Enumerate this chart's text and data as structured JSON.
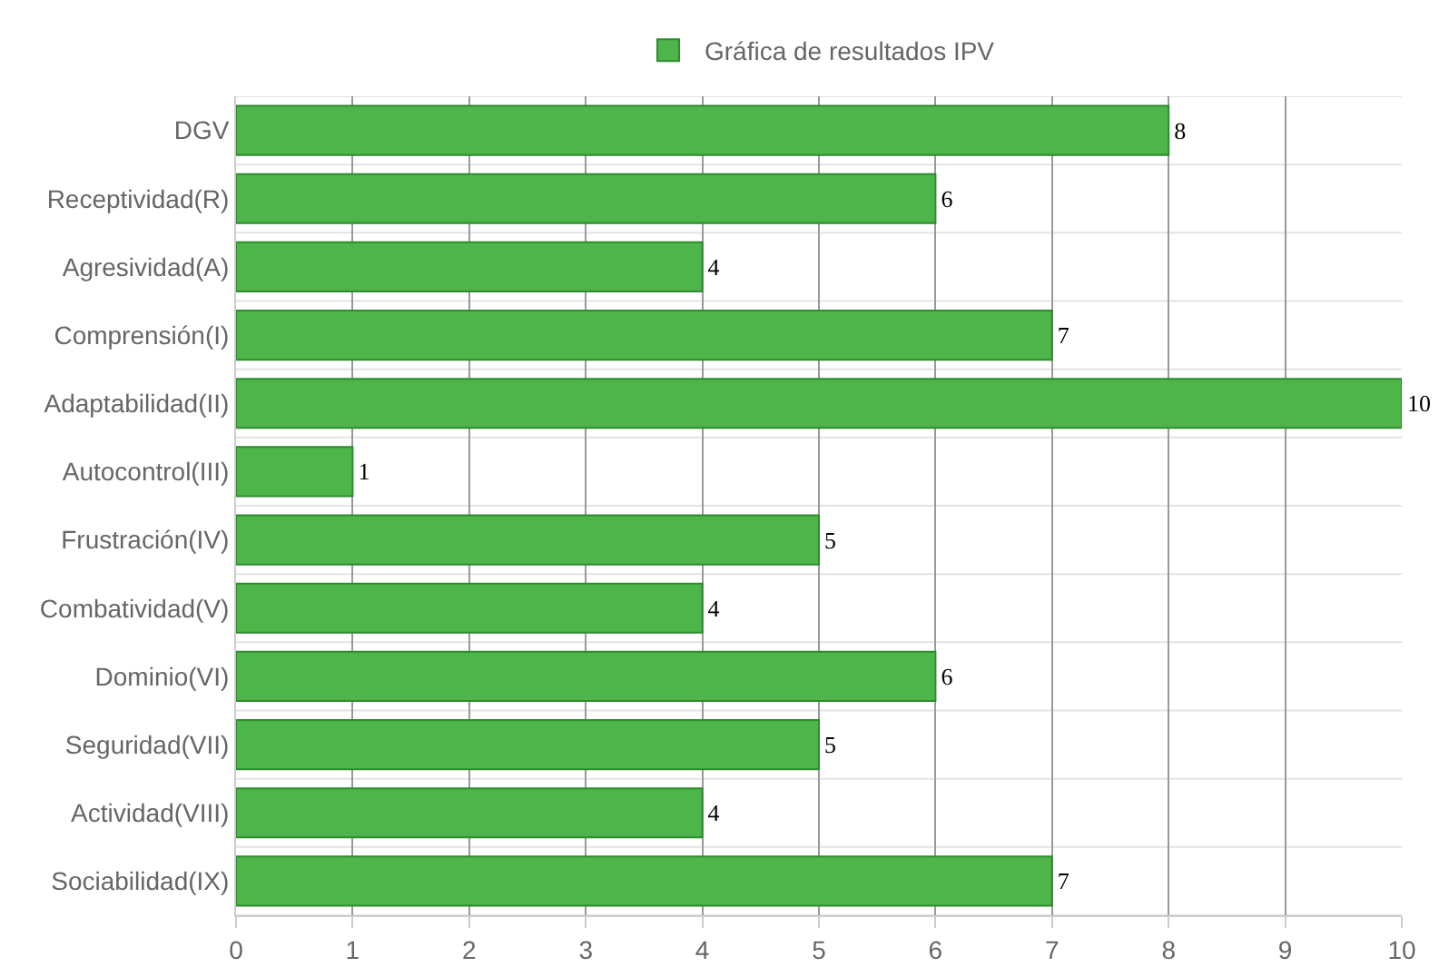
{
  "chart_data": {
    "type": "bar",
    "orientation": "horizontal",
    "categories": [
      "DGV",
      "Receptividad(R)",
      "Agresividad(A)",
      "Comprensión(I)",
      "Adaptabilidad(II)",
      "Autocontrol(III)",
      "Frustración(IV)",
      "Combatividad(V)",
      "Dominio(VI)",
      "Seguridad(VII)",
      "Actividad(VIII)",
      "Sociabilidad(IX)"
    ],
    "series": [
      {
        "name": "Gráfica de resultados IPV",
        "color": "#4db54a",
        "values": [
          8,
          6,
          4,
          7,
          10,
          1,
          5,
          4,
          6,
          5,
          4,
          7
        ]
      }
    ],
    "xlim": [
      0,
      10
    ],
    "xticks": [
      0,
      1,
      2,
      3,
      4,
      5,
      6,
      7,
      8,
      9,
      10
    ],
    "grid": true,
    "legend": "top",
    "data_labels": true
  }
}
